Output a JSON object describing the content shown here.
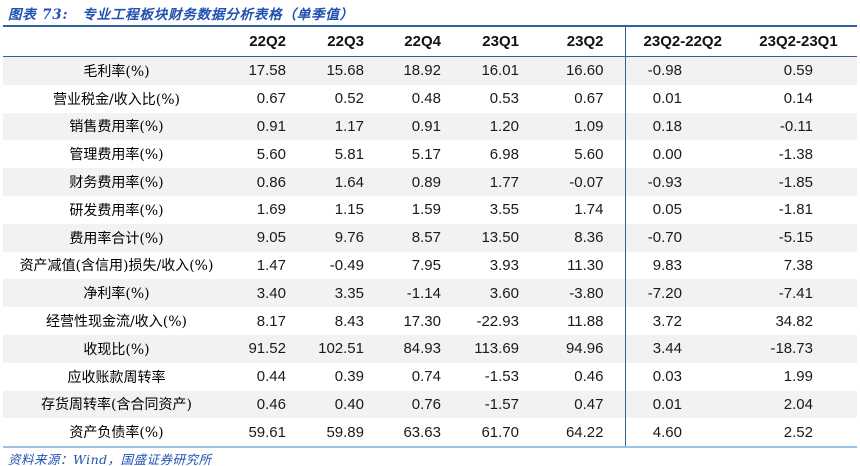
{
  "header": {
    "figure_label": "图表 73:",
    "title": "专业工程板块财务数据分析表格（单季值）"
  },
  "table": {
    "columns": [
      "22Q2",
      "22Q3",
      "22Q4",
      "23Q1",
      "23Q2",
      "23Q2-22Q2",
      "23Q2-23Q1"
    ],
    "rows": [
      {
        "label": "毛利率(%)",
        "values": [
          "17.58",
          "15.68",
          "18.92",
          "16.01",
          "16.60",
          "-0.98",
          "0.59"
        ]
      },
      {
        "label": "营业税金/收入比(%)",
        "values": [
          "0.67",
          "0.52",
          "0.48",
          "0.53",
          "0.67",
          "0.01",
          "0.14"
        ]
      },
      {
        "label": "销售费用率(%)",
        "values": [
          "0.91",
          "1.17",
          "0.91",
          "1.20",
          "1.09",
          "0.18",
          "-0.11"
        ]
      },
      {
        "label": "管理费用率(%)",
        "values": [
          "5.60",
          "5.81",
          "5.17",
          "6.98",
          "5.60",
          "0.00",
          "-1.38"
        ]
      },
      {
        "label": "财务费用率(%)",
        "values": [
          "0.86",
          "1.64",
          "0.89",
          "1.77",
          "-0.07",
          "-0.93",
          "-1.85"
        ]
      },
      {
        "label": "研发费用率(%)",
        "values": [
          "1.69",
          "1.15",
          "1.59",
          "3.55",
          "1.74",
          "0.05",
          "-1.81"
        ]
      },
      {
        "label": "费用率合计(%)",
        "values": [
          "9.05",
          "9.76",
          "8.57",
          "13.50",
          "8.36",
          "-0.70",
          "-5.15"
        ]
      },
      {
        "label": "资产减值(含信用)损失/收入(%)",
        "values": [
          "1.47",
          "-0.49",
          "7.95",
          "3.93",
          "11.30",
          "9.83",
          "7.38"
        ]
      },
      {
        "label": "净利率(%)",
        "values": [
          "3.40",
          "3.35",
          "-1.14",
          "3.60",
          "-3.80",
          "-7.20",
          "-7.41"
        ]
      },
      {
        "label": "经营性现金流/收入(%)",
        "values": [
          "8.17",
          "8.43",
          "17.30",
          "-22.93",
          "11.88",
          "3.72",
          "34.82"
        ]
      },
      {
        "label": "收现比(%)",
        "values": [
          "91.52",
          "102.51",
          "84.93",
          "113.69",
          "94.96",
          "3.44",
          "-18.73"
        ]
      },
      {
        "label": "应收账款周转率",
        "values": [
          "0.44",
          "0.39",
          "0.74",
          "-1.53",
          "0.46",
          "0.03",
          "1.99"
        ]
      },
      {
        "label": "存货周转率(含合同资产)",
        "values": [
          "0.46",
          "0.40",
          "0.76",
          "-1.57",
          "0.47",
          "0.01",
          "2.04"
        ]
      },
      {
        "label": "资产负债率(%)",
        "values": [
          "59.61",
          "59.89",
          "63.63",
          "61.70",
          "64.22",
          "4.60",
          "2.52"
        ]
      }
    ]
  },
  "footer": {
    "source": "资料来源：Wind，国盛证券研究所"
  },
  "colors": {
    "accent_line": "#31609e",
    "bottom_line": "#9cc3e6",
    "title_blue": "#2151b0",
    "stripe_gray": "#f2f2f2"
  }
}
